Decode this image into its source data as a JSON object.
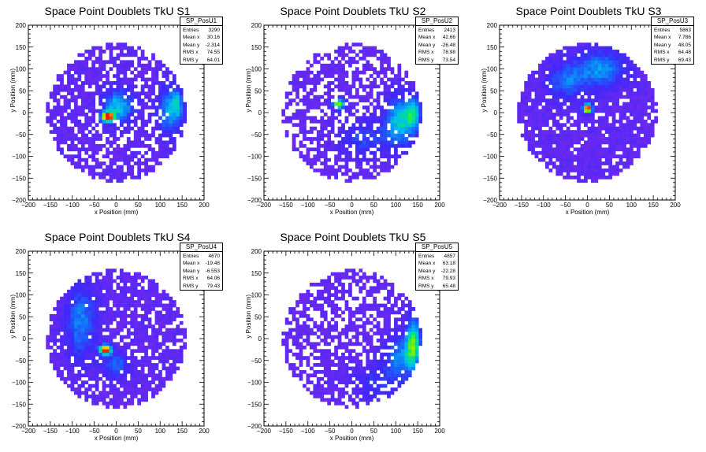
{
  "chart_data": [
    {
      "type": "heatmap",
      "title": "Space Point Doublets TkU S1",
      "xlabel": "x Position (mm)",
      "ylabel": "y Position (mm)",
      "xlim": [
        -200,
        200
      ],
      "ylim": [
        -200,
        200
      ],
      "xticks": [
        "−200",
        "−150",
        "−100",
        "−50",
        "0",
        "50",
        "100",
        "150",
        "200"
      ],
      "yticks": [
        "200",
        "150",
        "100",
        "50",
        "0",
        "−50",
        "−100",
        "−150",
        "−200"
      ],
      "stats": {
        "name": "SP_PosU1",
        "rows": [
          {
            "label": "Entries",
            "value": "3290"
          },
          {
            "label": "Mean x",
            "value": "30.16"
          },
          {
            "label": "Mean y",
            "value": "-2.314"
          },
          {
            "label": "RMS x",
            "value": "74.55"
          },
          {
            "label": "RMS y",
            "value": "64.01"
          }
        ]
      },
      "pattern": {
        "seed": 11,
        "background": 0.12,
        "fill": 0.68,
        "hotspots": [
          {
            "x": -20,
            "y": -10,
            "peak": 1.0,
            "sx": 10,
            "sy": 8
          },
          {
            "x": 5,
            "y": 15,
            "peak": 0.5,
            "sx": 25,
            "sy": 25
          },
          {
            "x": 120,
            "y": 5,
            "peak": 0.4,
            "sx": 18,
            "sy": 40
          },
          {
            "x": 140,
            "y": 20,
            "peak": 0.3,
            "sx": 10,
            "sy": 25
          }
        ]
      }
    },
    {
      "type": "heatmap",
      "title": "Space Point Doublets TkU S2",
      "xlabel": "x Position (mm)",
      "ylabel": "y Position (mm)",
      "xlim": [
        -200,
        200
      ],
      "ylim": [
        -200,
        200
      ],
      "xticks": [
        "−200",
        "−150",
        "−100",
        "−50",
        "0",
        "50",
        "100",
        "150",
        "200"
      ],
      "yticks": [
        "200",
        "150",
        "100",
        "50",
        "0",
        "−50",
        "−100",
        "−150",
        "−200"
      ],
      "stats": {
        "name": "SP_PosU2",
        "rows": [
          {
            "label": "Entries",
            "value": "2413"
          },
          {
            "label": "Mean x",
            "value": "42.66"
          },
          {
            "label": "Mean y",
            "value": "-26.48"
          },
          {
            "label": "RMS x",
            "value": "78.98"
          },
          {
            "label": "RMS y",
            "value": "73.54"
          }
        ]
      },
      "pattern": {
        "seed": 23,
        "background": 0.1,
        "fill": 0.62,
        "hotspots": [
          {
            "x": -30,
            "y": 20,
            "peak": 0.75,
            "sx": 10,
            "sy": 8
          },
          {
            "x": 110,
            "y": -20,
            "peak": 0.5,
            "sx": 25,
            "sy": 40
          },
          {
            "x": 140,
            "y": 0,
            "peak": 0.4,
            "sx": 12,
            "sy": 25
          },
          {
            "x": 30,
            "y": -60,
            "peak": 0.25,
            "sx": 40,
            "sy": 30
          }
        ]
      }
    },
    {
      "type": "heatmap",
      "title": "Space Point Doublets TkU S3",
      "xlabel": "x Position (mm)",
      "ylabel": "y Position (mm)",
      "xlim": [
        -200,
        200
      ],
      "ylim": [
        -200,
        200
      ],
      "xticks": [
        "−200",
        "−150",
        "−100",
        "−50",
        "0",
        "50",
        "100",
        "150",
        "200"
      ],
      "yticks": [
        "200",
        "150",
        "100",
        "50",
        "0",
        "−50",
        "−100",
        "−150",
        "−200"
      ],
      "stats": {
        "name": "SP_PosU3",
        "rows": [
          {
            "label": "Entries",
            "value": "5863"
          },
          {
            "label": "Mean x",
            "value": "7.786"
          },
          {
            "label": "Mean y",
            "value": "48.05"
          },
          {
            "label": "RMS x",
            "value": "64.48"
          },
          {
            "label": "RMS y",
            "value": "69.43"
          }
        ]
      },
      "pattern": {
        "seed": 37,
        "background": 0.12,
        "fill": 0.85,
        "hotspots": [
          {
            "x": 0,
            "y": 10,
            "peak": 1.0,
            "sx": 8,
            "sy": 8
          },
          {
            "x": 30,
            "y": 100,
            "peak": 0.4,
            "sx": 40,
            "sy": 30
          },
          {
            "x": -50,
            "y": 70,
            "peak": 0.3,
            "sx": 30,
            "sy": 30
          }
        ]
      }
    },
    {
      "type": "heatmap",
      "title": "Space Point Doublets TkU S4",
      "xlabel": "x Position (mm)",
      "ylabel": "y Position (mm)",
      "xlim": [
        -200,
        200
      ],
      "ylim": [
        -200,
        200
      ],
      "xticks": [
        "−200",
        "−150",
        "−100",
        "−50",
        "0",
        "50",
        "100",
        "150",
        "200"
      ],
      "yticks": [
        "200",
        "150",
        "100",
        "50",
        "0",
        "−50",
        "−100",
        "−150",
        "−200"
      ],
      "stats": {
        "name": "SP_PosU4",
        "rows": [
          {
            "label": "Entries",
            "value": "4670"
          },
          {
            "label": "Mean x",
            "value": "-19.48"
          },
          {
            "label": "Mean y",
            "value": "-6.553"
          },
          {
            "label": "RMS x",
            "value": "64.06"
          },
          {
            "label": "RMS y",
            "value": "79.43"
          }
        ]
      },
      "pattern": {
        "seed": 51,
        "background": 0.12,
        "fill": 0.8,
        "hotspots": [
          {
            "x": -25,
            "y": -25,
            "peak": 1.0,
            "sx": 10,
            "sy": 8
          },
          {
            "x": -80,
            "y": 40,
            "peak": 0.35,
            "sx": 25,
            "sy": 60
          },
          {
            "x": 0,
            "y": -60,
            "peak": 0.3,
            "sx": 20,
            "sy": 20
          }
        ]
      }
    },
    {
      "type": "heatmap",
      "title": "Space Point Doublets TkU S5",
      "xlabel": "x Position (mm)",
      "ylabel": "y Position (mm)",
      "xlim": [
        -200,
        200
      ],
      "ylim": [
        -200,
        200
      ],
      "xticks": [
        "−200",
        "−150",
        "−100",
        "−50",
        "0",
        "50",
        "100",
        "150",
        "200"
      ],
      "yticks": [
        "200",
        "150",
        "100",
        "50",
        "0",
        "−50",
        "−100",
        "−150",
        "−200"
      ],
      "stats": {
        "name": "SP_PosU5",
        "rows": [
          {
            "label": "Entries",
            "value": "4857"
          },
          {
            "label": "Mean x",
            "value": "63.18"
          },
          {
            "label": "Mean y",
            "value": "-22.28"
          },
          {
            "label": "RMS x",
            "value": "79.93"
          },
          {
            "label": "RMS y",
            "value": "65.48"
          }
        ]
      },
      "pattern": {
        "seed": 67,
        "background": 0.1,
        "fill": 0.65,
        "hotspots": [
          {
            "x": 140,
            "y": -10,
            "peak": 0.6,
            "sx": 12,
            "sy": 40
          },
          {
            "x": 110,
            "y": -40,
            "peak": 0.35,
            "sx": 25,
            "sy": 35
          },
          {
            "x": 60,
            "y": -100,
            "peak": 0.2,
            "sx": 40,
            "sy": 30
          }
        ]
      }
    }
  ]
}
